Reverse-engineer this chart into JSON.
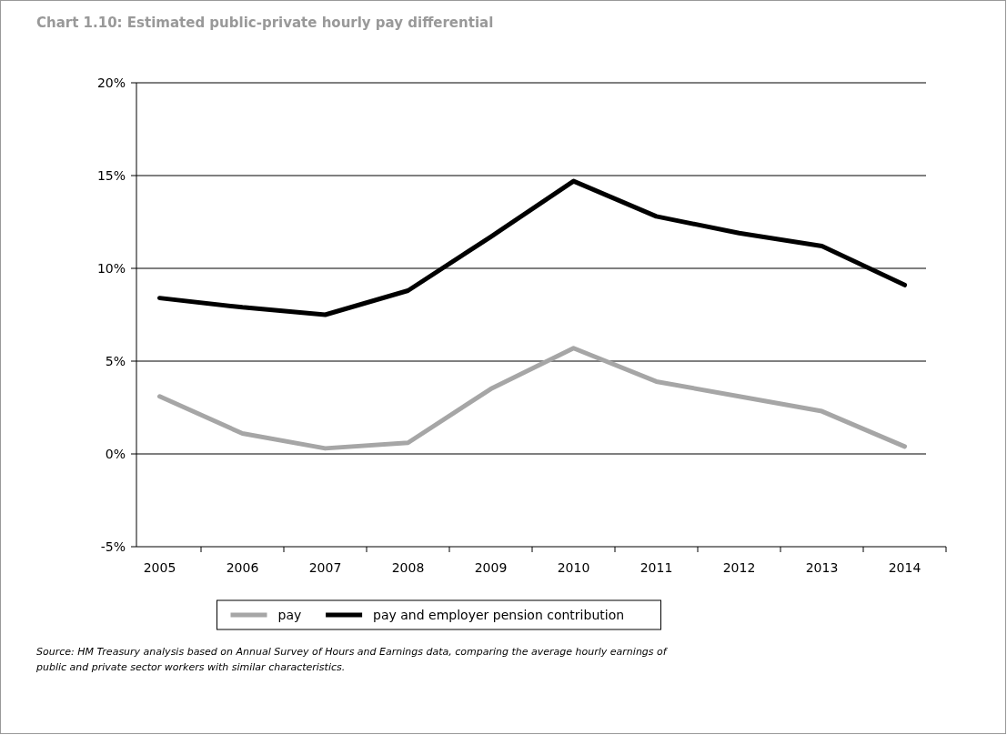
{
  "chart_data": {
    "type": "line",
    "title": "Chart 1.10: Estimated public-private hourly pay differential",
    "categories": [
      "2005",
      "2006",
      "2007",
      "2008",
      "2009",
      "2010",
      "2011",
      "2012",
      "2013",
      "2014"
    ],
    "series": [
      {
        "name": "pay",
        "color": "#a6a6a6",
        "values": [
          3.1,
          1.1,
          0.3,
          0.6,
          3.5,
          5.7,
          3.9,
          3.1,
          2.3,
          0.4
        ]
      },
      {
        "name": "pay and employer pension contribution",
        "color": "#000000",
        "values": [
          8.4,
          7.9,
          7.5,
          8.8,
          11.7,
          14.7,
          12.8,
          11.9,
          11.2,
          9.1
        ]
      }
    ],
    "ylim": [
      -5,
      20
    ],
    "yticks": [
      {
        "value": -5,
        "label": "-5%"
      },
      {
        "value": 0,
        "label": "0%"
      },
      {
        "value": 5,
        "label": "5%"
      },
      {
        "value": 10,
        "label": "10%"
      },
      {
        "value": 15,
        "label": "15%"
      },
      {
        "value": 20,
        "label": "20%"
      }
    ],
    "grid": "y",
    "legend": "bottom",
    "marker": "none",
    "line_style": "solid",
    "annotations": [
      "Source: HM Treasury analysis based on Annual Survey of Hours and Earnings data, comparing the average hourly earnings of public and private sector workers with similar characteristics."
    ]
  }
}
